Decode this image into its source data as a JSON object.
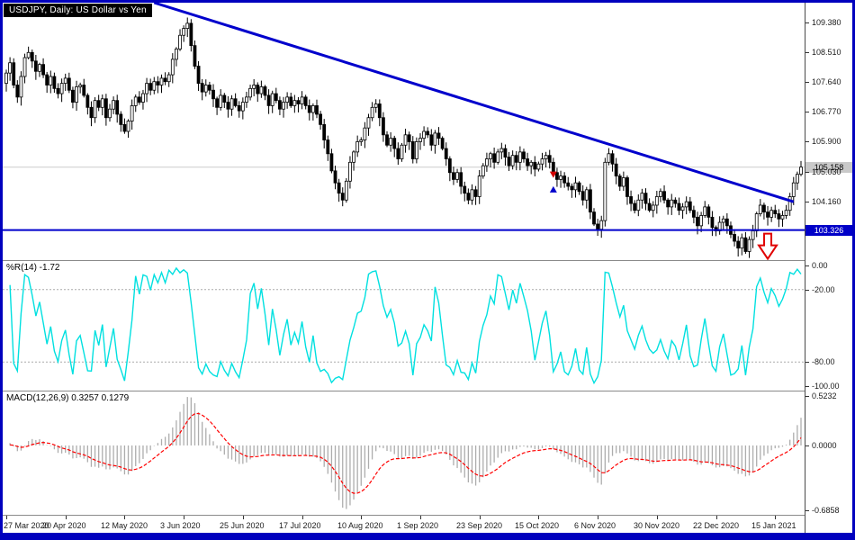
{
  "chart_data": [
    {
      "type": "candlestick",
      "symbol": "USDJPY",
      "timeframe": "Daily",
      "title": "USDJPY, Daily:  US Dollar vs Yen",
      "ylim": [
        102.45,
        109.95
      ],
      "y_ticks": [
        "109.380",
        "108.510",
        "107.640",
        "106.770",
        "105.900",
        "105.030",
        "104.160"
      ],
      "x_ticks": [
        "27 Mar 2020",
        "20 Apr 2020",
        "12 May 2020",
        "3 Jun 2020",
        "25 Jun 2020",
        "17 Jul 2020",
        "10 Aug 2020",
        "1 Sep 2020",
        "23 Sep 2020",
        "15 Oct 2020",
        "6 Nov 2020",
        "30 Nov 2020",
        "22 Dec 2020",
        "15 Jan 2021"
      ],
      "bars_per_x_tick": 16,
      "first_open": 107.6,
      "closes": [
        107.9,
        108.2,
        107.55,
        107.2,
        107.8,
        108.35,
        108.5,
        108.25,
        107.95,
        108.15,
        107.85,
        107.55,
        107.8,
        107.45,
        107.3,
        107.6,
        107.75,
        107.4,
        107.05,
        107.5,
        107.55,
        107.25,
        106.9,
        106.6,
        107.1,
        106.9,
        107.15,
        106.6,
        106.85,
        107.1,
        106.7,
        106.4,
        106.2,
        106.5,
        106.95,
        107.2,
        107.05,
        107.3,
        107.6,
        107.4,
        107.65,
        107.55,
        107.75,
        107.65,
        107.85,
        108.3,
        108.6,
        109.0,
        109.2,
        109.35,
        108.7,
        108.1,
        107.6,
        107.35,
        107.55,
        107.4,
        107.15,
        106.9,
        107.25,
        107.05,
        106.85,
        107.15,
        106.95,
        106.8,
        107.05,
        107.2,
        107.45,
        107.55,
        107.3,
        107.5,
        107.25,
        106.95,
        107.3,
        107.1,
        106.85,
        107.05,
        107.2,
        106.95,
        107.1,
        107.0,
        107.2,
        106.95,
        106.75,
        106.95,
        106.7,
        106.4,
        105.95,
        105.55,
        105.05,
        104.7,
        104.4,
        104.2,
        104.75,
        105.3,
        105.6,
        105.9,
        105.95,
        106.3,
        106.6,
        106.9,
        107.0,
        106.6,
        106.1,
        105.8,
        106.0,
        105.7,
        105.4,
        105.8,
        106.1,
        105.9,
        105.4,
        105.9,
        106.0,
        106.2,
        106.1,
        105.8,
        106.15,
        106.0,
        105.7,
        105.4,
        105.0,
        104.8,
        105.0,
        104.6,
        104.4,
        104.2,
        104.5,
        104.3,
        104.9,
        105.2,
        105.4,
        105.55,
        105.3,
        105.6,
        105.7,
        105.45,
        105.2,
        105.5,
        105.3,
        105.6,
        105.4,
        105.2,
        105.3,
        105.1,
        105.25,
        105.4,
        105.5,
        105.3,
        105.0,
        104.8,
        104.9,
        104.7,
        104.6,
        104.5,
        104.7,
        104.45,
        104.2,
        104.5,
        103.85,
        103.5,
        103.35,
        103.6,
        105.3,
        105.55,
        105.25,
        104.9,
        104.6,
        104.85,
        104.3,
        104.1,
        103.9,
        104.2,
        104.4,
        104.1,
        103.9,
        104.05,
        104.3,
        104.45,
        104.2,
        104.0,
        104.2,
        104.1,
        103.9,
        104.0,
        104.15,
        103.9,
        103.7,
        103.45,
        103.75,
        104.0,
        103.7,
        103.4,
        103.3,
        103.55,
        103.65,
        103.45,
        103.2,
        103.0,
        102.8,
        103.1,
        102.7,
        103.05,
        103.3,
        103.8,
        104.05,
        103.85,
        103.7,
        103.9,
        103.8,
        103.65,
        103.75,
        103.9,
        104.3,
        104.7,
        104.95,
        105.16
      ],
      "current_price": 105.158,
      "current_price_label": "105.158",
      "support_level": 103.326,
      "support_label": "103.326",
      "bull_color": "#ffffff",
      "bear_color": "#000000",
      "outline_color": "#000000",
      "support_color": "#0000CC",
      "trendline": {
        "from_bar": 40,
        "from_price": 109.95,
        "to_bar": 213,
        "to_price": 104.15,
        "color": "#0000CC",
        "width": 3
      },
      "arrow": {
        "bar": 206,
        "color": "#E00000"
      },
      "markers": [
        {
          "bar": 148,
          "price": 104.5,
          "dir": "up",
          "color": "#0000CC"
        },
        {
          "bar": 148,
          "price": 104.95,
          "dir": "down",
          "color": "#D00000"
        }
      ]
    },
    {
      "type": "line",
      "indicator": "Williams %R",
      "label": "%R(14) -1.72",
      "period": 14,
      "current_value": -1.72,
      "ylim": [
        0,
        -100
      ],
      "y_ticks": [
        "0.00",
        "-20.00",
        "-80.00",
        "-100.00"
      ],
      "levels": [
        -20,
        -80
      ],
      "color": "#00E0E0"
    },
    {
      "type": "macd",
      "label": "MACD(12,26,9) 0.3257 0.1279",
      "fast": 12,
      "slow": 26,
      "signal_period": 9,
      "main_value": 0.3257,
      "signal_value": 0.1279,
      "ylim": [
        -0.6858,
        0.5232
      ],
      "y_ticks": [
        "0.5232",
        "0.0000",
        "-0.6858"
      ],
      "histogram_color": "#ADADAD",
      "signal_color": "#FF0000"
    }
  ]
}
